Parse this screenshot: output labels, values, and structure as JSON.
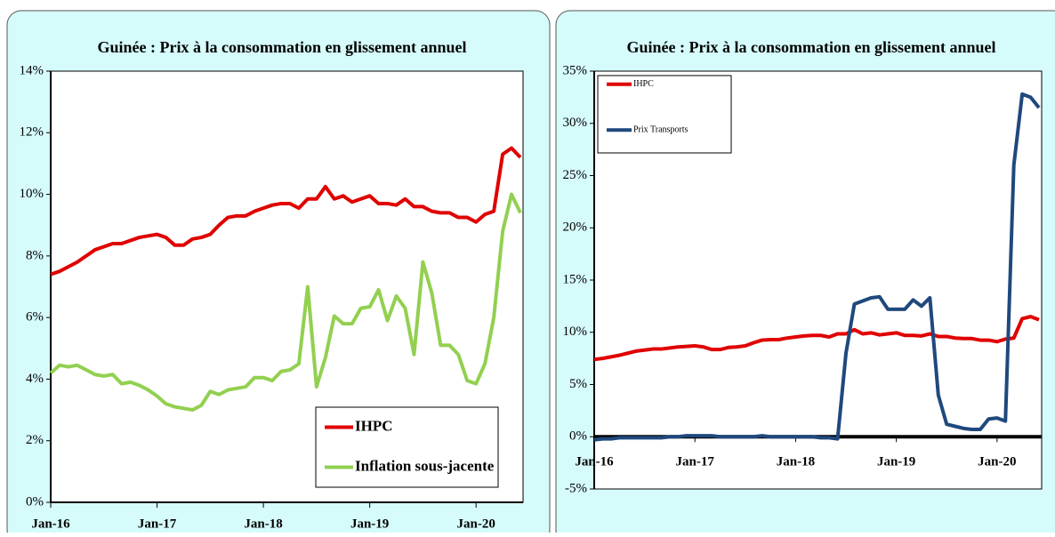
{
  "chart_data": [
    {
      "type": "line",
      "title": "Guinée : Prix à la consommation en glissement annuel",
      "categories": [
        "Jan-16",
        null,
        null,
        null,
        null,
        null,
        null,
        null,
        null,
        null,
        null,
        null,
        "Jan-17",
        null,
        null,
        null,
        null,
        null,
        null,
        null,
        null,
        null,
        null,
        null,
        "Jan-18",
        null,
        null,
        null,
        null,
        null,
        null,
        null,
        null,
        null,
        null,
        null,
        "Jan-19",
        null,
        null,
        null,
        null,
        null,
        null,
        null,
        null,
        null,
        null,
        null,
        "Jan-20",
        null,
        null,
        null,
        null,
        null
      ],
      "series": [
        {
          "name": "IHPC",
          "color": "#e00000",
          "values": [
            7.4,
            7.5,
            7.65,
            7.8,
            8.0,
            8.2,
            8.3,
            8.4,
            8.4,
            8.5,
            8.6,
            8.65,
            8.7,
            8.6,
            8.35,
            8.35,
            8.55,
            8.6,
            8.7,
            9.0,
            9.25,
            9.3,
            9.3,
            9.45,
            9.55,
            9.65,
            9.7,
            9.7,
            9.55,
            9.85,
            9.85,
            10.25,
            9.85,
            9.95,
            9.75,
            9.85,
            9.95,
            9.7,
            9.7,
            9.65,
            9.85,
            9.6,
            9.6,
            9.45,
            9.4,
            9.4,
            9.25,
            9.25,
            9.1,
            9.35,
            9.45,
            11.3,
            11.5,
            11.2
          ]
        },
        {
          "name": "Inflation sous-jacente",
          "color": "#92d050",
          "values": [
            4.2,
            4.45,
            4.4,
            4.45,
            4.3,
            4.15,
            4.1,
            4.15,
            3.85,
            3.9,
            3.8,
            3.65,
            3.45,
            3.2,
            3.1,
            3.05,
            3.0,
            3.15,
            3.6,
            3.5,
            3.65,
            3.7,
            3.75,
            4.05,
            4.05,
            3.95,
            4.25,
            4.3,
            4.5,
            7.0,
            3.75,
            4.7,
            6.05,
            5.8,
            5.8,
            6.3,
            6.35,
            6.9,
            5.9,
            6.7,
            6.3,
            4.8,
            7.8,
            6.8,
            5.1,
            5.1,
            4.8,
            3.95,
            3.85,
            4.5,
            6.0,
            8.8,
            10.0,
            9.4
          ]
        }
      ],
      "ylim": [
        0,
        14
      ],
      "yticks": [
        {
          "value": 0,
          "label": "0%"
        },
        {
          "value": 2,
          "label": "2%"
        },
        {
          "value": 4,
          "label": "4%"
        },
        {
          "value": 6,
          "label": "6%"
        },
        {
          "value": 8,
          "label": "8%"
        },
        {
          "value": 10,
          "label": "10%"
        },
        {
          "value": 12,
          "label": "12%"
        },
        {
          "value": 14,
          "label": "14%"
        }
      ],
      "legend": "lower right"
    },
    {
      "type": "line",
      "title": "Guinée : Prix à la consommation en glissement annuel",
      "categories": [
        "Jan-16",
        null,
        null,
        null,
        null,
        null,
        null,
        null,
        null,
        null,
        null,
        null,
        "Jan-17",
        null,
        null,
        null,
        null,
        null,
        null,
        null,
        null,
        null,
        null,
        null,
        "Jan-18",
        null,
        null,
        null,
        null,
        null,
        null,
        null,
        null,
        null,
        null,
        null,
        "Jan-19",
        null,
        null,
        null,
        null,
        null,
        null,
        null,
        null,
        null,
        null,
        null,
        "Jan-20",
        null,
        null,
        null,
        null,
        null
      ],
      "series": [
        {
          "name": "IHPC",
          "color": "#e00000",
          "values": [
            7.4,
            7.5,
            7.65,
            7.8,
            8.0,
            8.2,
            8.3,
            8.4,
            8.4,
            8.5,
            8.6,
            8.65,
            8.7,
            8.6,
            8.35,
            8.35,
            8.55,
            8.6,
            8.7,
            9.0,
            9.25,
            9.3,
            9.3,
            9.45,
            9.55,
            9.65,
            9.7,
            9.7,
            9.55,
            9.85,
            9.85,
            10.25,
            9.85,
            9.95,
            9.75,
            9.85,
            9.95,
            9.7,
            9.7,
            9.65,
            9.85,
            9.6,
            9.6,
            9.45,
            9.4,
            9.4,
            9.25,
            9.25,
            9.1,
            9.35,
            9.45,
            11.3,
            11.5,
            11.2
          ]
        },
        {
          "name": "Prix Transports",
          "color": "#1f497d",
          "values": [
            -0.3,
            -0.2,
            -0.2,
            -0.1,
            -0.1,
            -0.1,
            -0.1,
            -0.1,
            -0.1,
            0,
            0,
            0.1,
            0.1,
            0.1,
            0.1,
            0,
            0,
            0,
            0,
            0,
            0.1,
            0,
            0,
            0,
            0,
            0,
            0,
            -0.1,
            -0.1,
            -0.2,
            8,
            12.7,
            13.0,
            13.3,
            13.4,
            12.2,
            12.2,
            12.2,
            13.1,
            12.5,
            13.3,
            4,
            1.2,
            1.0,
            0.8,
            0.7,
            0.7,
            1.7,
            1.8,
            1.5,
            26,
            32.8,
            32.5,
            31.5
          ]
        }
      ],
      "ylim": [
        -5,
        35
      ],
      "yticks": [
        {
          "value": -5,
          "label": "-5%"
        },
        {
          "value": 0,
          "label": "0%"
        },
        {
          "value": 5,
          "label": "5%"
        },
        {
          "value": 10,
          "label": "10%"
        },
        {
          "value": 15,
          "label": "15%"
        },
        {
          "value": 20,
          "label": "20%"
        },
        {
          "value": 25,
          "label": "25%"
        },
        {
          "value": 30,
          "label": "30%"
        },
        {
          "value": 35,
          "label": "35%"
        }
      ],
      "legend": "upper left"
    }
  ]
}
